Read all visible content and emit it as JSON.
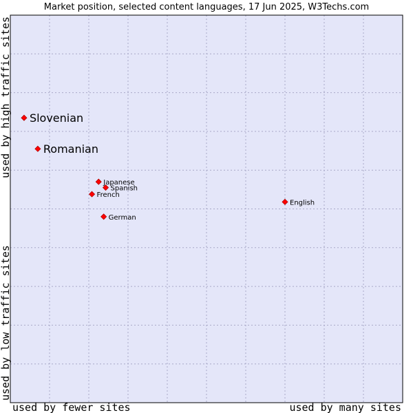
{
  "chart_data": {
    "type": "scatter",
    "title": "Market position, selected content languages, 17 Jun 2025, W3Techs.com",
    "xlabel_left": "used by fewer sites",
    "xlabel_right": "used by many sites",
    "ylabel_top": "used by high traffic sites",
    "ylabel_bottom": "used by low traffic sites",
    "xlim": [
      0,
      10
    ],
    "ylim": [
      0,
      10
    ],
    "grid": true,
    "colors": {
      "plot_background": "#e4e6f9",
      "grid": "#a8a8c8",
      "marker": "#ff0000"
    },
    "points": [
      {
        "name": "Slovenian",
        "x": 0.35,
        "y": 7.35,
        "label_size": "large"
      },
      {
        "name": "Romanian",
        "x": 0.7,
        "y": 6.55,
        "label_size": "large"
      },
      {
        "name": "Japanese",
        "x": 2.25,
        "y": 5.7,
        "label_size": "small"
      },
      {
        "name": "Spanish",
        "x": 2.43,
        "y": 5.55,
        "label_size": "small"
      },
      {
        "name": "French",
        "x": 2.08,
        "y": 5.38,
        "label_size": "small"
      },
      {
        "name": "English",
        "x": 7.0,
        "y": 5.18,
        "label_size": "small"
      },
      {
        "name": "German",
        "x": 2.38,
        "y": 4.8,
        "label_size": "small"
      }
    ]
  }
}
